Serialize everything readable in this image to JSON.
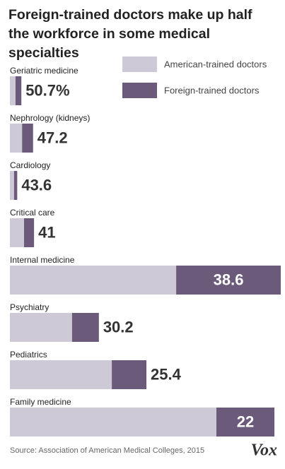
{
  "chart_data": {
    "type": "stacked-hbar",
    "title": "Foreign-trained doctors make up half the workforce in some medical specialties",
    "categories": [
      "Geriatric medicine",
      "Nephrology (kidneys)",
      "Cardiology",
      "Critical care",
      "Internal medicine",
      "Psychiatry",
      "Pediatrics",
      "Family medicine"
    ],
    "series": [
      {
        "name": "American-trained doctors",
        "color": "#cdc9d6",
        "values": [
          2.3,
          5.0,
          1.7,
          5.8,
          68.2,
          25.5,
          41.8,
          84.7
        ]
      },
      {
        "name": "Foreign-trained doctors",
        "color": "#6c5a7b",
        "values": [
          2.4,
          4.5,
          1.3,
          4.1,
          42.9,
          11.0,
          14.2,
          23.8
        ]
      }
    ],
    "foreign_share_labels": [
      "50.7%",
      "47.2",
      "43.6",
      "41",
      "38.6",
      "30.2",
      "25.4",
      "22"
    ],
    "xlim": [
      0,
      111.1
    ],
    "source": "Source: Association of American Medical Colleges, 2015",
    "logo": "Vox"
  }
}
